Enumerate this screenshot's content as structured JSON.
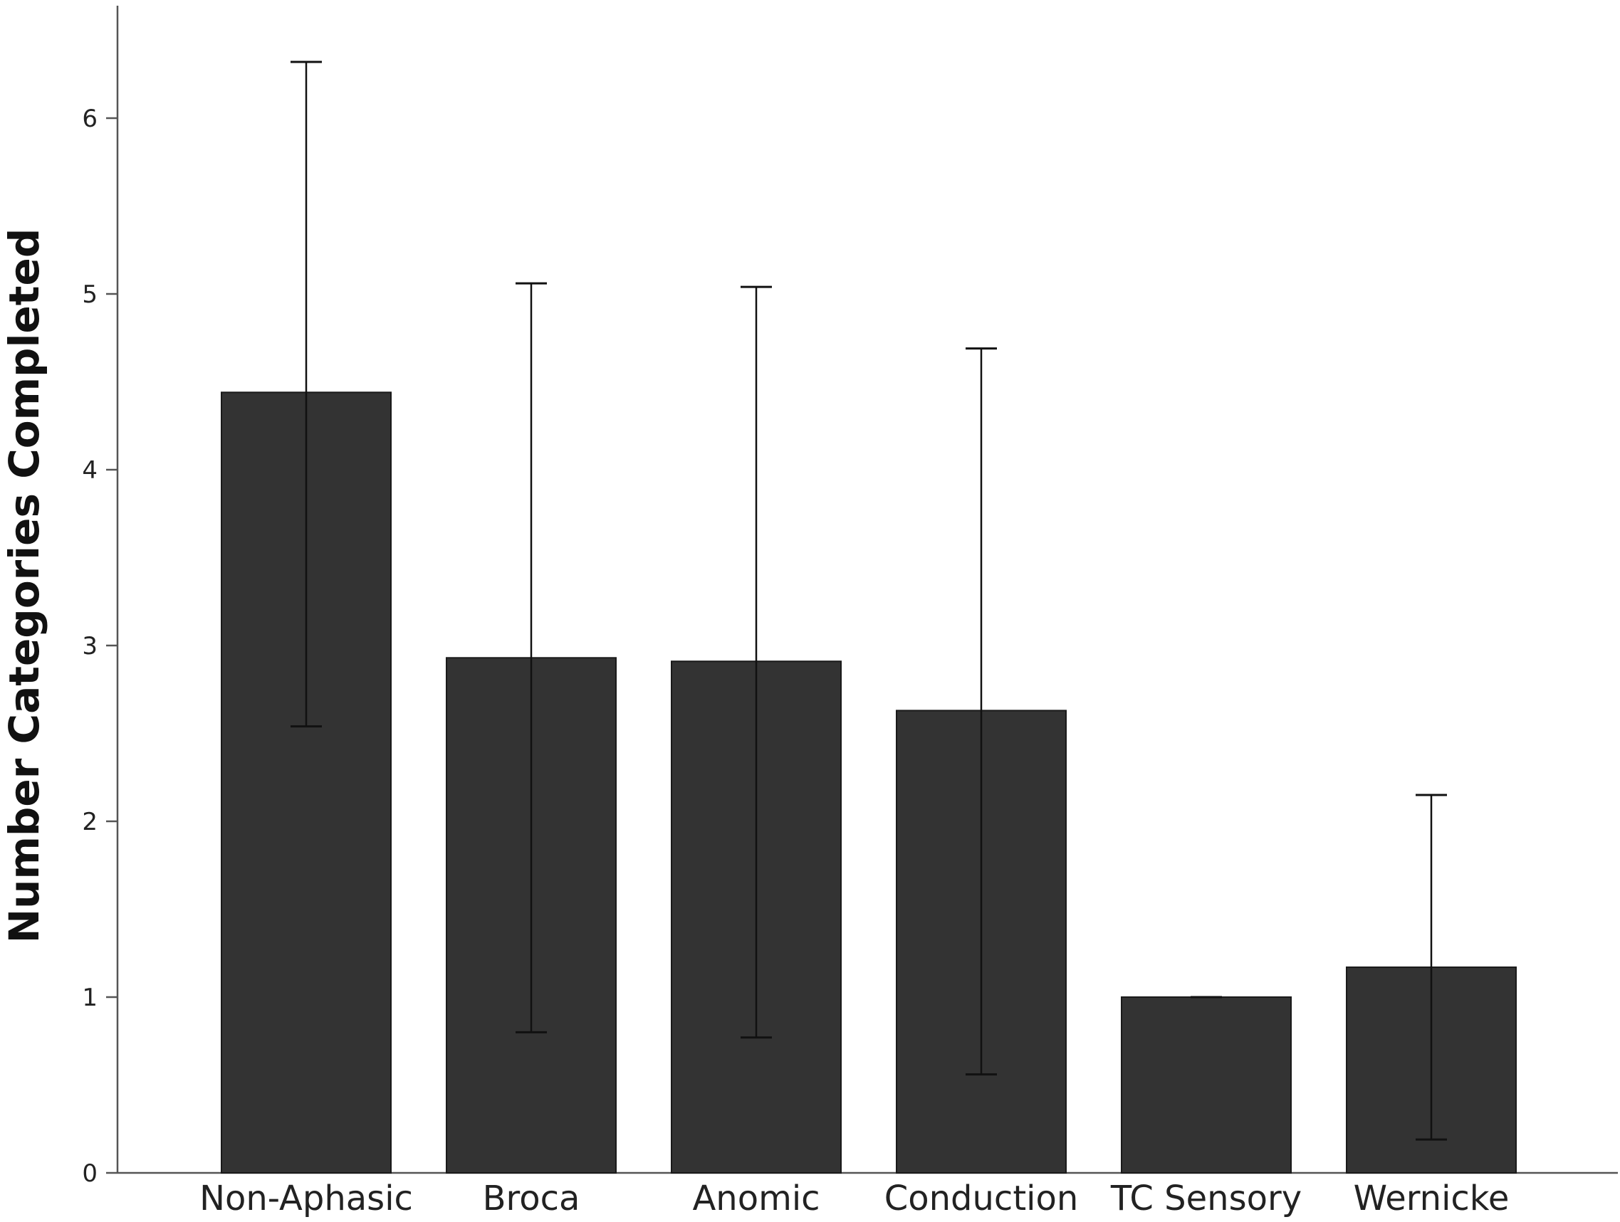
{
  "chart_data": {
    "type": "bar",
    "title": "",
    "xlabel": "",
    "ylabel": "Number Categories Completed",
    "categories": [
      "Non-Aphasic",
      "Broca",
      "Anomic",
      "Conduction",
      "TC Sensory",
      "Wernicke"
    ],
    "values": [
      4.44,
      2.93,
      2.91,
      2.63,
      1.0,
      1.17
    ],
    "error_low": [
      2.54,
      0.8,
      0.77,
      0.56,
      1.0,
      0.19
    ],
    "error_high": [
      6.32,
      5.06,
      5.04,
      4.69,
      1.0,
      2.15
    ],
    "yticks": [
      "0",
      "1",
      "2",
      "3",
      "4",
      "5",
      "6"
    ],
    "ylim": [
      0,
      6.6
    ],
    "grid": false,
    "legend": "none",
    "colors": {
      "bar": "#333333",
      "bar_edge": "#1a1a1a",
      "axis": "#555555",
      "error_bar": "#111111"
    }
  }
}
